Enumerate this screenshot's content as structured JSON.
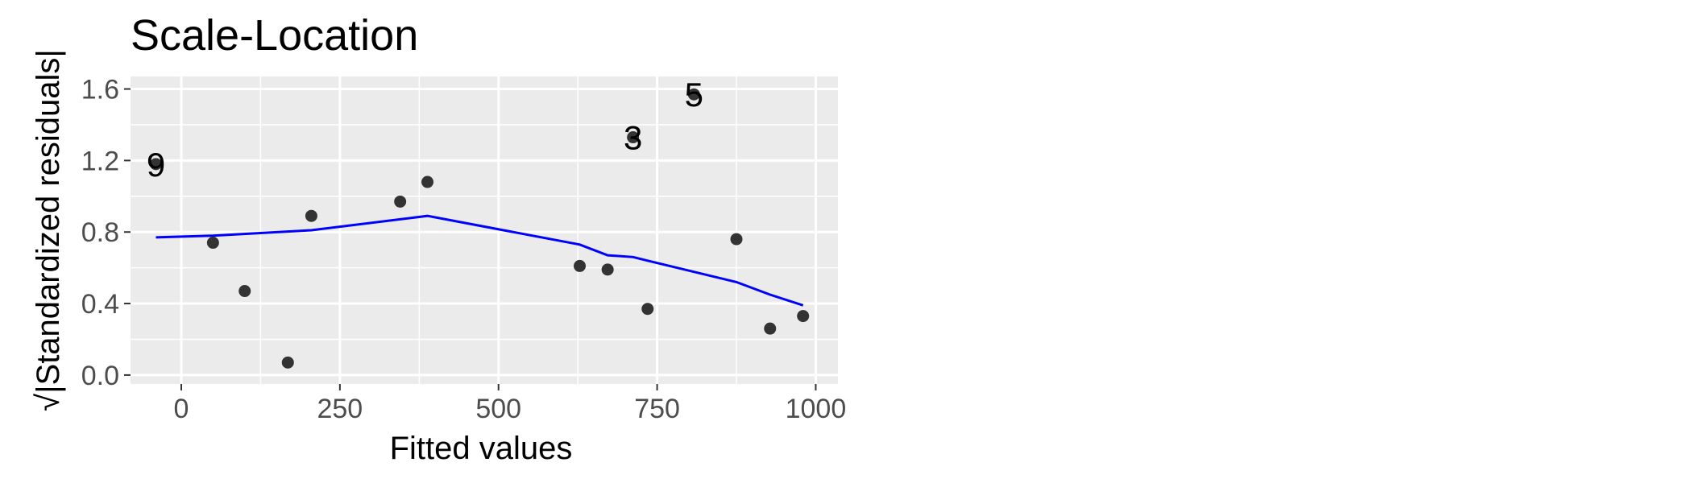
{
  "chart_data": {
    "type": "scatter",
    "title": "Scale-Location",
    "xlabel": "Fitted values",
    "ylabel": "√|Standardized residuals|",
    "xlim": [
      -80,
      1035
    ],
    "ylim": [
      -0.05,
      1.67
    ],
    "x_ticks": [
      0,
      250,
      500,
      750,
      1000
    ],
    "y_ticks": [
      0.0,
      0.4,
      0.8,
      1.2,
      1.6
    ],
    "x_tick_labels": [
      "0",
      "250",
      "500",
      "750",
      "1000"
    ],
    "y_tick_labels": [
      "0.0",
      "0.4",
      "0.8",
      "1.2",
      "1.6"
    ],
    "grid": true,
    "background": "#ebebeb",
    "point_color": "#333333",
    "smooth_color": "#0000ff",
    "points": [
      {
        "x": -40,
        "y": 1.18
      },
      {
        "x": 50,
        "y": 0.74
      },
      {
        "x": 100,
        "y": 0.47
      },
      {
        "x": 168,
        "y": 0.07
      },
      {
        "x": 205,
        "y": 0.89
      },
      {
        "x": 345,
        "y": 0.97
      },
      {
        "x": 388,
        "y": 1.08
      },
      {
        "x": 628,
        "y": 0.61
      },
      {
        "x": 672,
        "y": 0.59
      },
      {
        "x": 712,
        "y": 1.33
      },
      {
        "x": 735,
        "y": 0.37
      },
      {
        "x": 808,
        "y": 1.57
      },
      {
        "x": 875,
        "y": 0.76
      },
      {
        "x": 928,
        "y": 0.26
      },
      {
        "x": 980,
        "y": 0.33
      }
    ],
    "point_labels": [
      {
        "x": -40,
        "y": 1.18,
        "text": "9"
      },
      {
        "x": 712,
        "y": 1.33,
        "text": "3"
      },
      {
        "x": 808,
        "y": 1.57,
        "text": "5"
      }
    ],
    "smooth": [
      {
        "x": -40,
        "y": 0.77
      },
      {
        "x": 50,
        "y": 0.78
      },
      {
        "x": 205,
        "y": 0.81
      },
      {
        "x": 388,
        "y": 0.89
      },
      {
        "x": 628,
        "y": 0.73
      },
      {
        "x": 672,
        "y": 0.67
      },
      {
        "x": 712,
        "y": 0.66
      },
      {
        "x": 735,
        "y": 0.64
      },
      {
        "x": 875,
        "y": 0.52
      },
      {
        "x": 928,
        "y": 0.45
      },
      {
        "x": 980,
        "y": 0.39
      }
    ]
  }
}
